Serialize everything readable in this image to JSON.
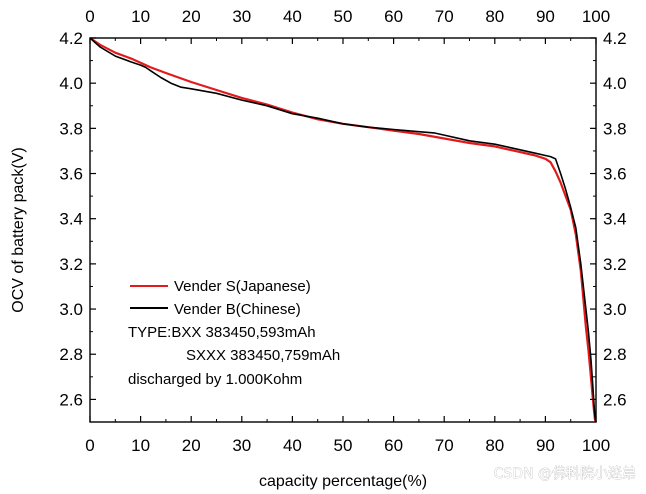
{
  "chart_data": {
    "type": "line",
    "title": "",
    "xlabel": "capacity percentage(%)",
    "ylabel": "OCV of battery pack(V)",
    "xlim": [
      0,
      100
    ],
    "ylim": [
      2.5,
      4.2
    ],
    "x_ticks": [
      "0",
      "10",
      "20",
      "30",
      "40",
      "50",
      "60",
      "70",
      "80",
      "90",
      "100"
    ],
    "y_ticks": [
      "2.6",
      "2.8",
      "3.0",
      "3.2",
      "3.4",
      "3.6",
      "3.8",
      "4.0",
      "4.2"
    ],
    "grid": false,
    "legend_position": "lower-left",
    "series": [
      {
        "name": "Vender S(Japanese)",
        "color": "#e31a1c",
        "x": [
          0,
          2,
          5,
          8,
          10,
          12,
          15,
          20,
          25,
          30,
          35,
          40,
          45,
          50,
          55,
          60,
          65,
          70,
          75,
          80,
          85,
          88,
          90,
          91,
          92,
          93,
          94,
          95,
          96,
          97,
          98,
          98.5,
          99,
          99.3,
          99.6,
          99.8,
          100
        ],
        "y": [
          4.2,
          4.17,
          4.135,
          4.11,
          4.09,
          4.07,
          4.045,
          4.005,
          3.97,
          3.935,
          3.905,
          3.87,
          3.84,
          3.82,
          3.805,
          3.79,
          3.775,
          3.755,
          3.735,
          3.72,
          3.695,
          3.68,
          3.665,
          3.65,
          3.61,
          3.56,
          3.5,
          3.44,
          3.33,
          3.17,
          2.92,
          2.82,
          2.7,
          2.62,
          2.55,
          2.51,
          2.5
        ]
      },
      {
        "name": "Vender B(Chinese)",
        "color": "#000000",
        "x": [
          0,
          2,
          5,
          8,
          10,
          11,
          12,
          14,
          16,
          18,
          20,
          25,
          30,
          35,
          40,
          45,
          50,
          55,
          60,
          65,
          68,
          70,
          75,
          80,
          85,
          88,
          90,
          91,
          92,
          93,
          94,
          95,
          96,
          97,
          98,
          98.5,
          99,
          99.3,
          99.6,
          99.8,
          100
        ],
        "y": [
          4.2,
          4.16,
          4.12,
          4.095,
          4.08,
          4.07,
          4.055,
          4.025,
          4.0,
          3.982,
          3.975,
          3.955,
          3.925,
          3.9,
          3.865,
          3.845,
          3.82,
          3.805,
          3.795,
          3.785,
          3.78,
          3.77,
          3.745,
          3.73,
          3.705,
          3.69,
          3.68,
          3.675,
          3.665,
          3.6,
          3.53,
          3.45,
          3.36,
          3.2,
          3.0,
          2.9,
          2.78,
          2.68,
          2.58,
          2.52,
          2.5
        ]
      }
    ],
    "annotations": [
      "TYPE:BXX 383450,593mAh",
      "SXXX 383450,759mAh",
      "discharged by 1.000Kohm"
    ]
  },
  "watermark": "CSDN @佛科院小迷弟"
}
